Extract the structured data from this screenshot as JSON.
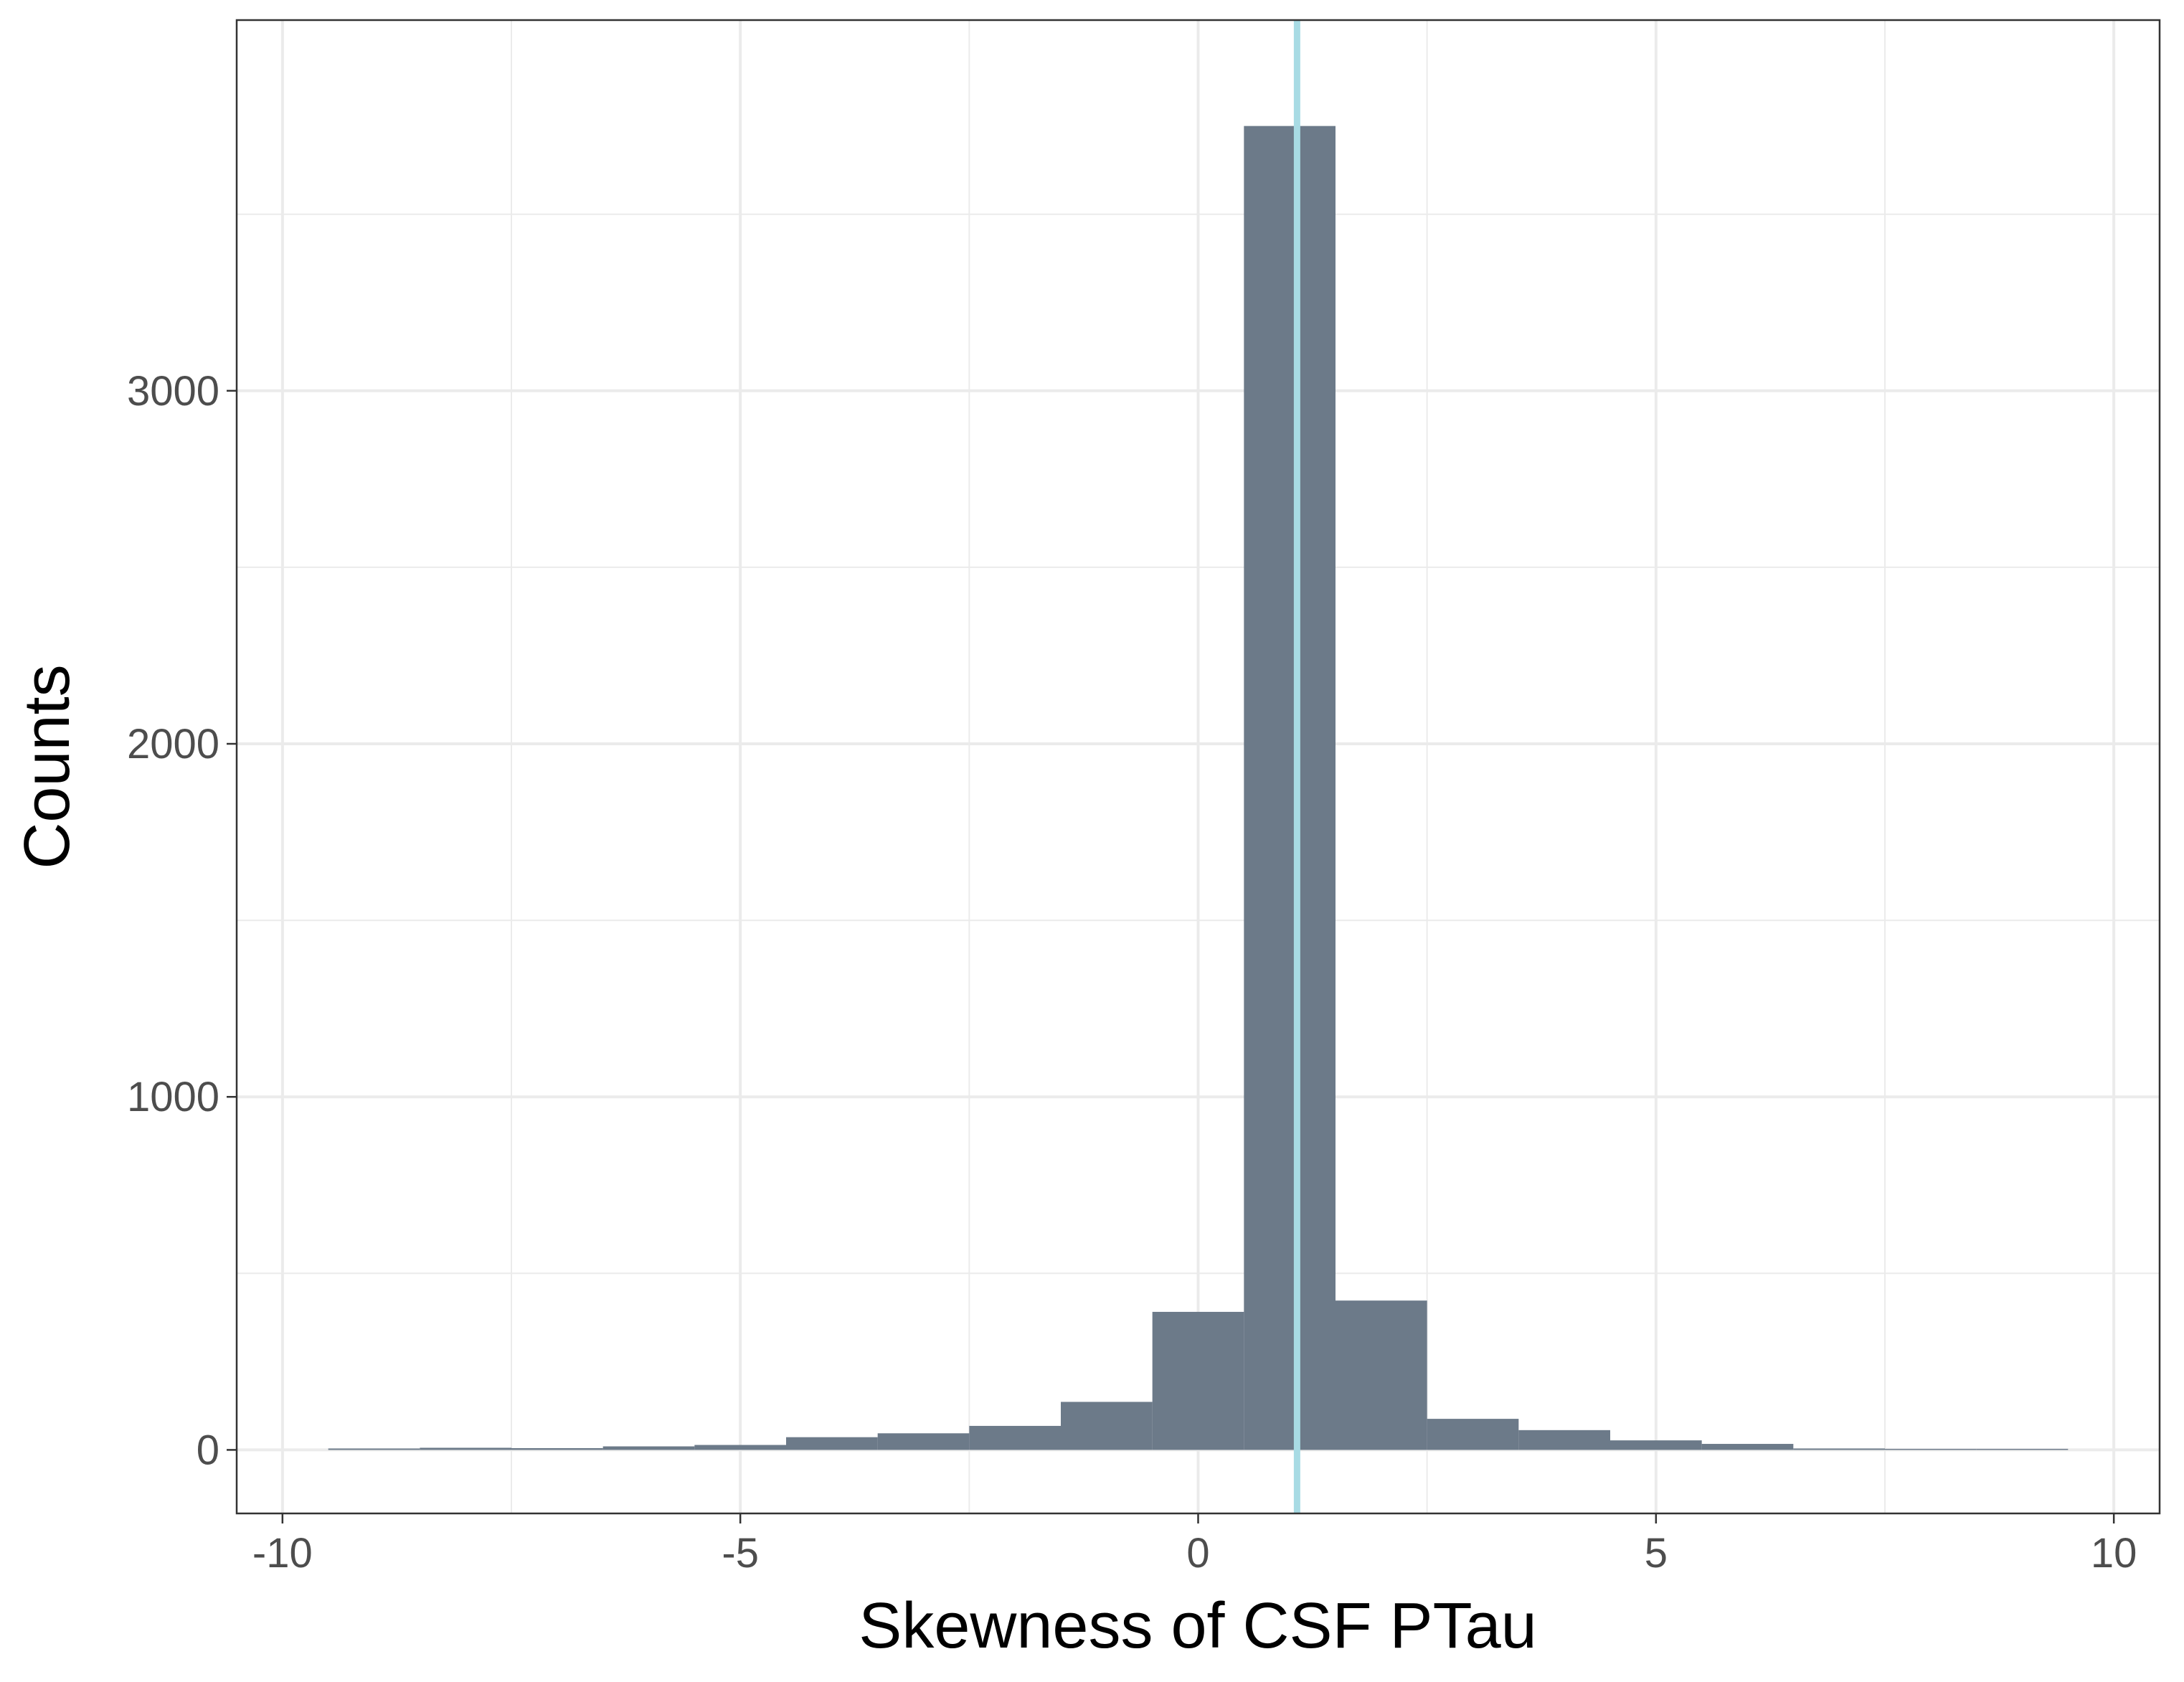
{
  "chart_data": {
    "type": "bar",
    "subtype": "histogram",
    "title": "",
    "xlabel": "Skewness of CSF PTau",
    "ylabel": "Counts",
    "xlim": [
      -10.5,
      10.5
    ],
    "ylim": [
      -180,
      4050
    ],
    "x_ticks": [
      -10,
      -5,
      0,
      5,
      10
    ],
    "x_tick_labels": [
      "-10",
      "-5",
      "0",
      "5",
      "10"
    ],
    "y_ticks": [
      0,
      1000,
      2000,
      3000
    ],
    "y_tick_labels": [
      "0",
      "1000",
      "2000",
      "3000"
    ],
    "x_minor_ticks": [
      -7.5,
      -2.5,
      2.5,
      7.5
    ],
    "y_minor_ticks": [
      500,
      1500,
      2500,
      3500
    ],
    "bin_width": 1,
    "bins": [
      {
        "x_start": -9.5,
        "x_end": -8.5,
        "count": 4
      },
      {
        "x_start": -8.5,
        "x_end": -7.5,
        "count": 6
      },
      {
        "x_start": -7.5,
        "x_end": -6.5,
        "count": 5
      },
      {
        "x_start": -6.5,
        "x_end": -5.5,
        "count": 10
      },
      {
        "x_start": -5.5,
        "x_end": -4.5,
        "count": 14
      },
      {
        "x_start": -4.5,
        "x_end": -3.5,
        "count": 36
      },
      {
        "x_start": -3.5,
        "x_end": -2.5,
        "count": 47
      },
      {
        "x_start": -2.5,
        "x_end": -1.5,
        "count": 68
      },
      {
        "x_start": -1.5,
        "x_end": -0.5,
        "count": 136
      },
      {
        "x_start": -0.5,
        "x_end": 0.5,
        "count": 391
      },
      {
        "x_start": 0.5,
        "x_end": 1.5,
        "count": 3750
      },
      {
        "x_start": 1.5,
        "x_end": 2.5,
        "count": 423
      },
      {
        "x_start": 2.5,
        "x_end": 3.5,
        "count": 88
      },
      {
        "x_start": 3.5,
        "x_end": 4.5,
        "count": 56
      },
      {
        "x_start": 4.5,
        "x_end": 5.5,
        "count": 27
      },
      {
        "x_start": 5.5,
        "x_end": 6.5,
        "count": 17
      },
      {
        "x_start": 6.5,
        "x_end": 7.5,
        "count": 4
      },
      {
        "x_start": 7.5,
        "x_end": 8.5,
        "count": 3
      },
      {
        "x_start": 8.5,
        "x_end": 9.5,
        "count": 3
      }
    ],
    "reference_line": {
      "orientation": "vertical",
      "x": 1.08,
      "color": "#a8dbe4"
    },
    "bar_color": "#6c7a89",
    "grid": true,
    "legend": "none"
  }
}
